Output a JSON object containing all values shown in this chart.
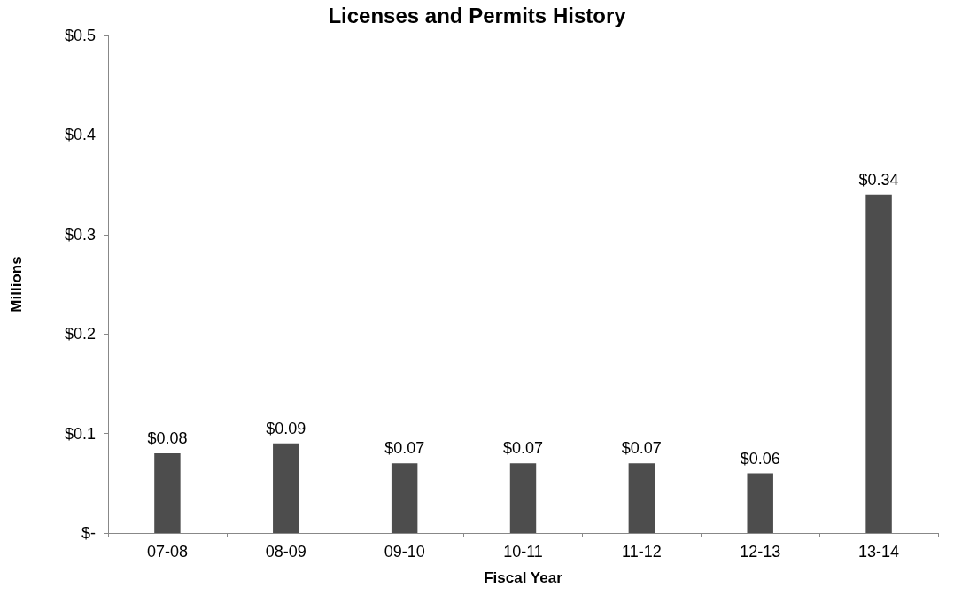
{
  "chart_data": {
    "type": "bar",
    "title": "Licenses and Permits History",
    "xlabel": "Fiscal Year",
    "ylabel": "Millions",
    "categories": [
      "07-08",
      "08-09",
      "09-10",
      "10-11",
      "11-12",
      "12-13",
      "13-14"
    ],
    "values": [
      0.08,
      0.09,
      0.07,
      0.07,
      0.07,
      0.06,
      0.34
    ],
    "value_labels": [
      "$0.08",
      "$0.09",
      "$0.07",
      "$0.07",
      "$0.07",
      "$0.06",
      "$0.34"
    ],
    "color": "#4d4d4d",
    "ylim": [
      0,
      0.5
    ],
    "yticks": [
      {
        "value": 0,
        "label": "$-"
      },
      {
        "value": 0.1,
        "label": "$0.1"
      },
      {
        "value": 0.2,
        "label": "$0.2"
      },
      {
        "value": 0.3,
        "label": "$0.3"
      },
      {
        "value": 0.4,
        "label": "$0.4"
      },
      {
        "value": 0.5,
        "label": "$0.5"
      }
    ],
    "grid": false
  }
}
